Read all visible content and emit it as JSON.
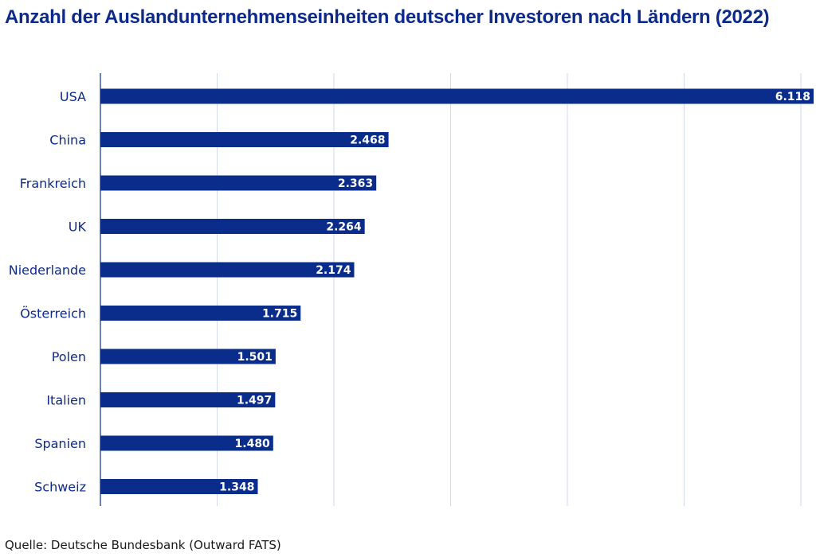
{
  "header": {
    "title": "Anzahl der Auslandunternehmenseinheiten deutscher Investoren nach Ländern (2022)"
  },
  "footer": {
    "source": "Quelle: Deutsche Bundesbank (Outward FATS)"
  },
  "colors": {
    "bar": "#0a2d8c",
    "title": "#0d2a8a",
    "grid": "#d3d9ee",
    "axis": "#0a2d8c"
  },
  "chart_data": {
    "type": "bar",
    "orientation": "horizontal",
    "title": "Anzahl der Auslandunternehmenseinheiten deutscher Investoren nach Ländern (2022)",
    "categories": [
      "USA",
      "China",
      "Frankreich",
      "UK",
      "Niederlande",
      "Österreich",
      "Polen",
      "Italien",
      "Spanien",
      "Schweiz"
    ],
    "values": [
      6118,
      2468,
      2363,
      2264,
      2174,
      1715,
      1501,
      1497,
      1480,
      1348
    ],
    "value_labels": [
      "6.118",
      "2.468",
      "2.363",
      "2.264",
      "2.174",
      "1.715",
      "1.501",
      "1.497",
      "1.480",
      "1.348"
    ],
    "xlim": [
      0,
      6000
    ],
    "x_gridlines": [
      0,
      1000,
      2000,
      3000,
      4000,
      5000,
      6000
    ],
    "grid": true,
    "legend": "none",
    "xlabel": "",
    "ylabel": ""
  }
}
